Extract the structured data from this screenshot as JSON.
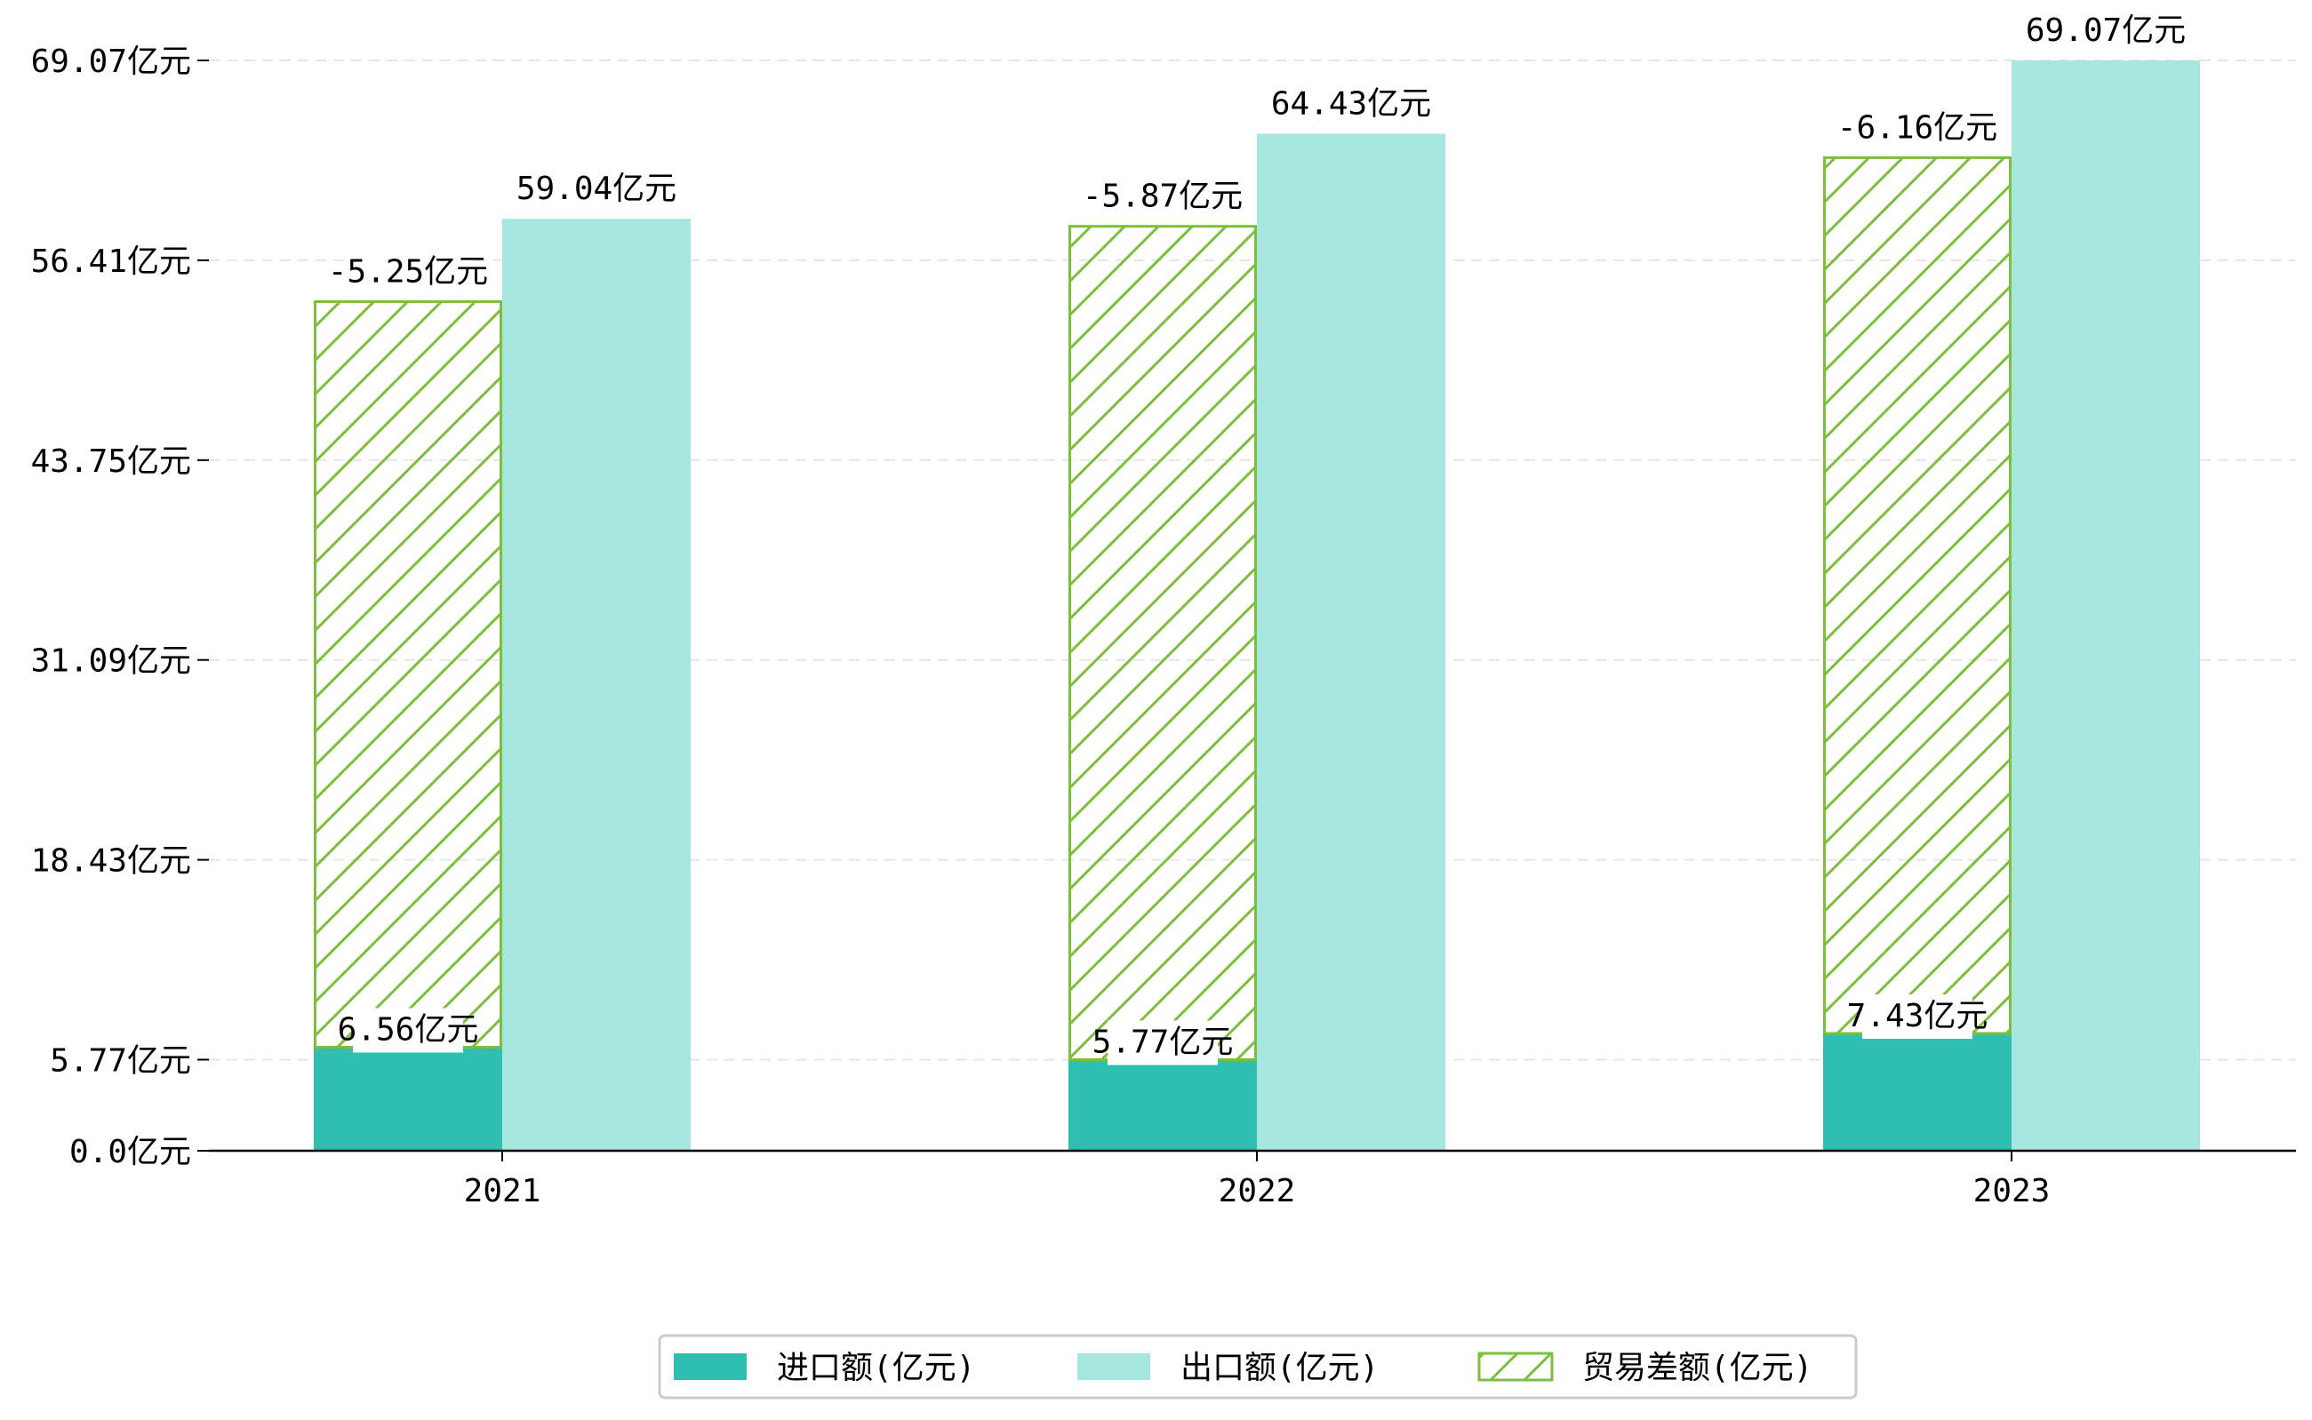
{
  "chart_data": {
    "type": "bar",
    "title": "",
    "xlabel": "",
    "ylabel": "",
    "categories": [
      "2021",
      "2022",
      "2023"
    ],
    "ylim": [
      0,
      69.07
    ],
    "yticks": [
      0.0,
      5.77,
      18.43,
      31.09,
      43.75,
      56.41,
      69.07
    ],
    "ytick_labels": [
      "0.0亿元",
      "5.77亿元",
      "18.43亿元",
      "31.09亿元",
      "43.75亿元",
      "56.41亿元",
      "69.07亿元"
    ],
    "grid": "horizontal dashed",
    "legend_position": "bottom-center",
    "series": [
      {
        "name": "进口额(亿元)",
        "color": "#2fbfb0",
        "values": [
          6.56,
          5.77,
          7.43
        ],
        "value_labels": [
          "6.56亿元",
          "5.77亿元",
          "7.43亿元"
        ]
      },
      {
        "name": "出口额(亿元)",
        "color": "#a8e6e0",
        "values": [
          59.04,
          64.43,
          69.07
        ],
        "value_labels": [
          "59.04亿元",
          "64.43亿元",
          "69.07亿元"
        ]
      },
      {
        "name": "贸易差额(亿元)",
        "color": "#7cbf3c",
        "pattern": "diagonal-hatch",
        "values": [
          -5.25,
          -5.87,
          -6.16
        ],
        "value_labels": [
          "-5.25亿元",
          "-5.87亿元",
          "-6.16亿元"
        ]
      }
    ]
  }
}
